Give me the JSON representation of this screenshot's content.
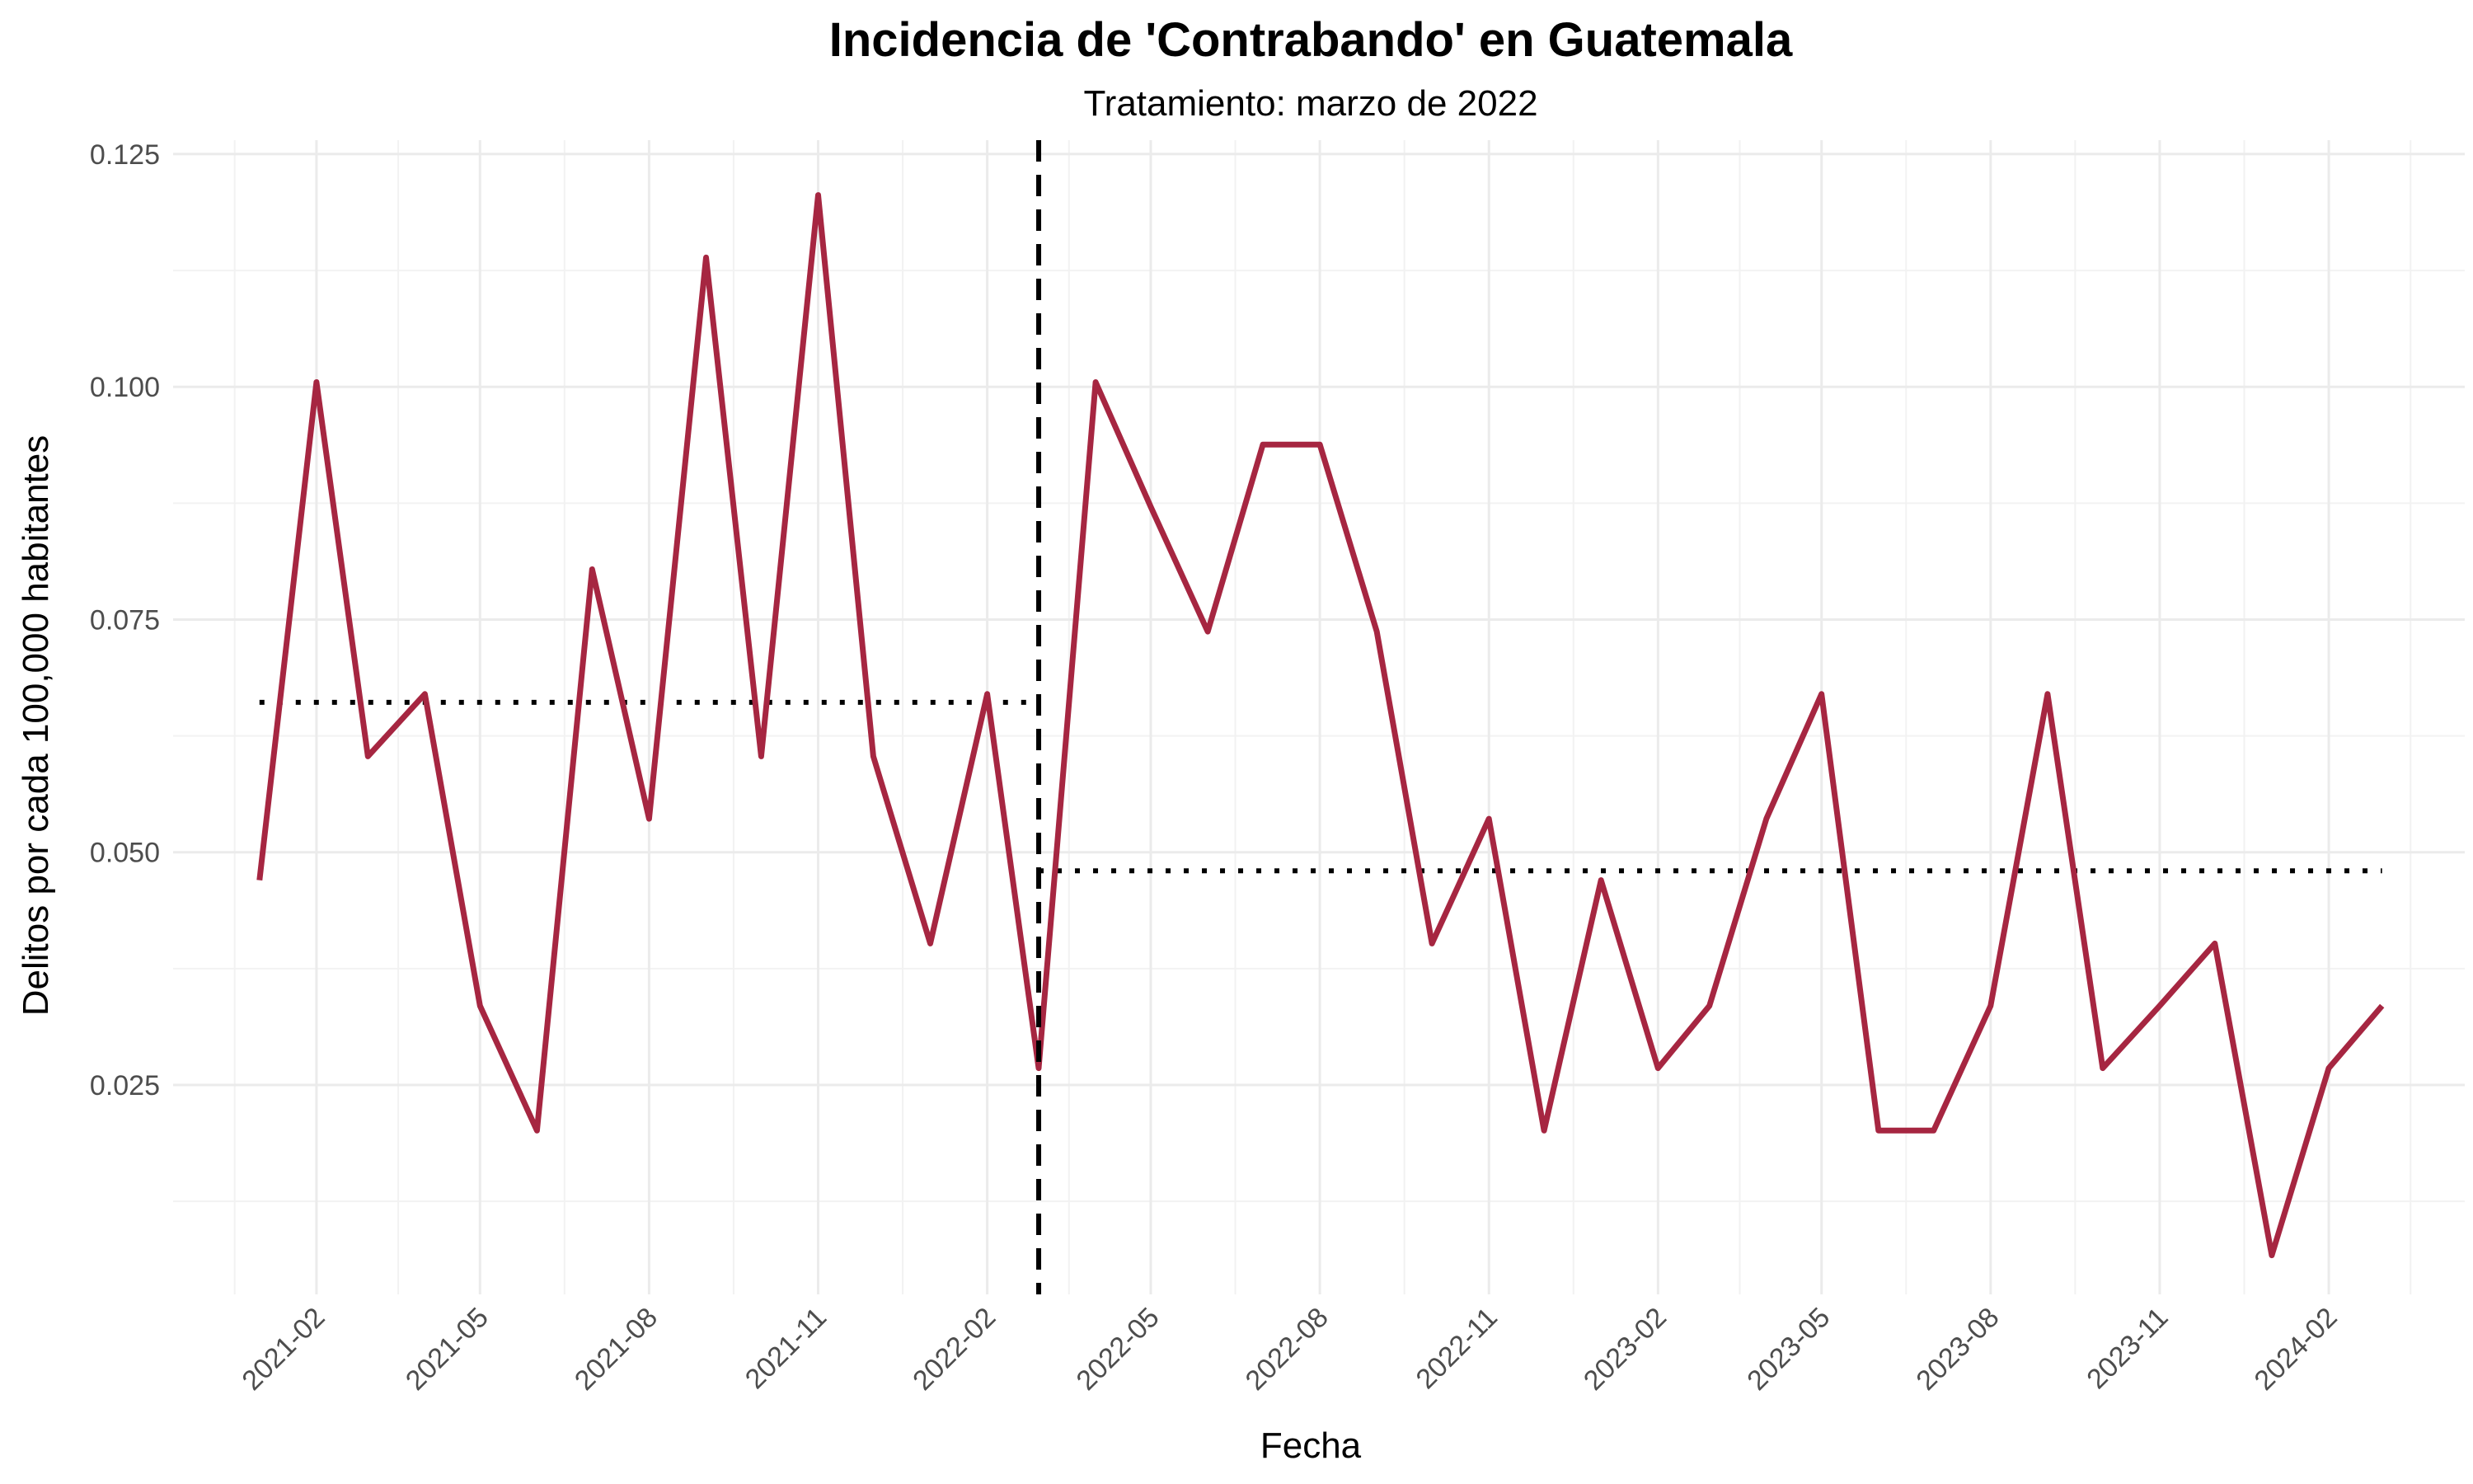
{
  "chart_data": {
    "type": "line",
    "title": "Incidencia de 'Contrabando' en Guatemala",
    "subtitle": "Tratamiento: marzo de 2022",
    "xlabel": "Fecha",
    "ylabel": "Delitos por cada 100,000 habitantes",
    "x_ticks": [
      "2021-02",
      "2021-05",
      "2021-08",
      "2021-11",
      "2022-02",
      "2022-05",
      "2022-08",
      "2022-11",
      "2023-02",
      "2023-05",
      "2023-08",
      "2023-11",
      "2024-02"
    ],
    "y_ticks": [
      0.025,
      0.05,
      0.075,
      0.1,
      0.125
    ],
    "y_tick_labels": [
      "0.025",
      "0.050",
      "0.075",
      "0.100",
      "0.125"
    ],
    "xlim": [
      "2020-11-15",
      "2024-04-15"
    ],
    "ylim": [
      0.0025,
      0.1265
    ],
    "grid": true,
    "series": [
      {
        "color": "#a62641",
        "x": [
          "2021-01-01",
          "2021-02-01",
          "2021-03-01",
          "2021-04-01",
          "2021-05-01",
          "2021-06-01",
          "2021-07-01",
          "2021-08-01",
          "2021-09-01",
          "2021-10-01",
          "2021-11-01",
          "2021-12-01",
          "2022-01-01",
          "2022-02-01",
          "2022-03-01",
          "2022-04-01",
          "2022-05-01",
          "2022-06-01",
          "2022-07-01",
          "2022-08-01",
          "2022-09-01",
          "2022-10-01",
          "2022-11-01",
          "2022-12-01",
          "2023-01-01",
          "2023-02-01",
          "2023-03-01",
          "2023-04-01",
          "2023-05-01",
          "2023-06-01",
          "2023-07-01",
          "2023-08-01",
          "2023-09-01",
          "2023-10-01",
          "2023-11-01",
          "2023-12-01",
          "2024-01-01",
          "2024-02-01",
          "2024-03-01"
        ],
        "values": [
          0.047,
          0.1005,
          0.0603,
          0.067,
          0.0335,
          0.0201,
          0.0804,
          0.0536,
          0.1139,
          0.0603,
          0.1206,
          0.0603,
          0.0402,
          0.067,
          0.0268,
          0.1005,
          0.0871,
          0.0737,
          0.0938,
          0.0938,
          0.0737,
          0.0402,
          0.0536,
          0.0201,
          0.047,
          0.0268,
          0.0335,
          0.0536,
          0.067,
          0.0201,
          0.0201,
          0.0335,
          0.067,
          0.0268,
          0.0335,
          0.0402,
          0.0067,
          0.0268,
          0.0335
        ]
      }
    ],
    "treatment_date": "2022-03-01",
    "pre_mean": {
      "value": 0.0661,
      "from": "2021-01-01",
      "to": "2022-02-28"
    },
    "post_mean": {
      "value": 0.048,
      "from": "2022-03-01",
      "to": "2024-03-01"
    }
  }
}
